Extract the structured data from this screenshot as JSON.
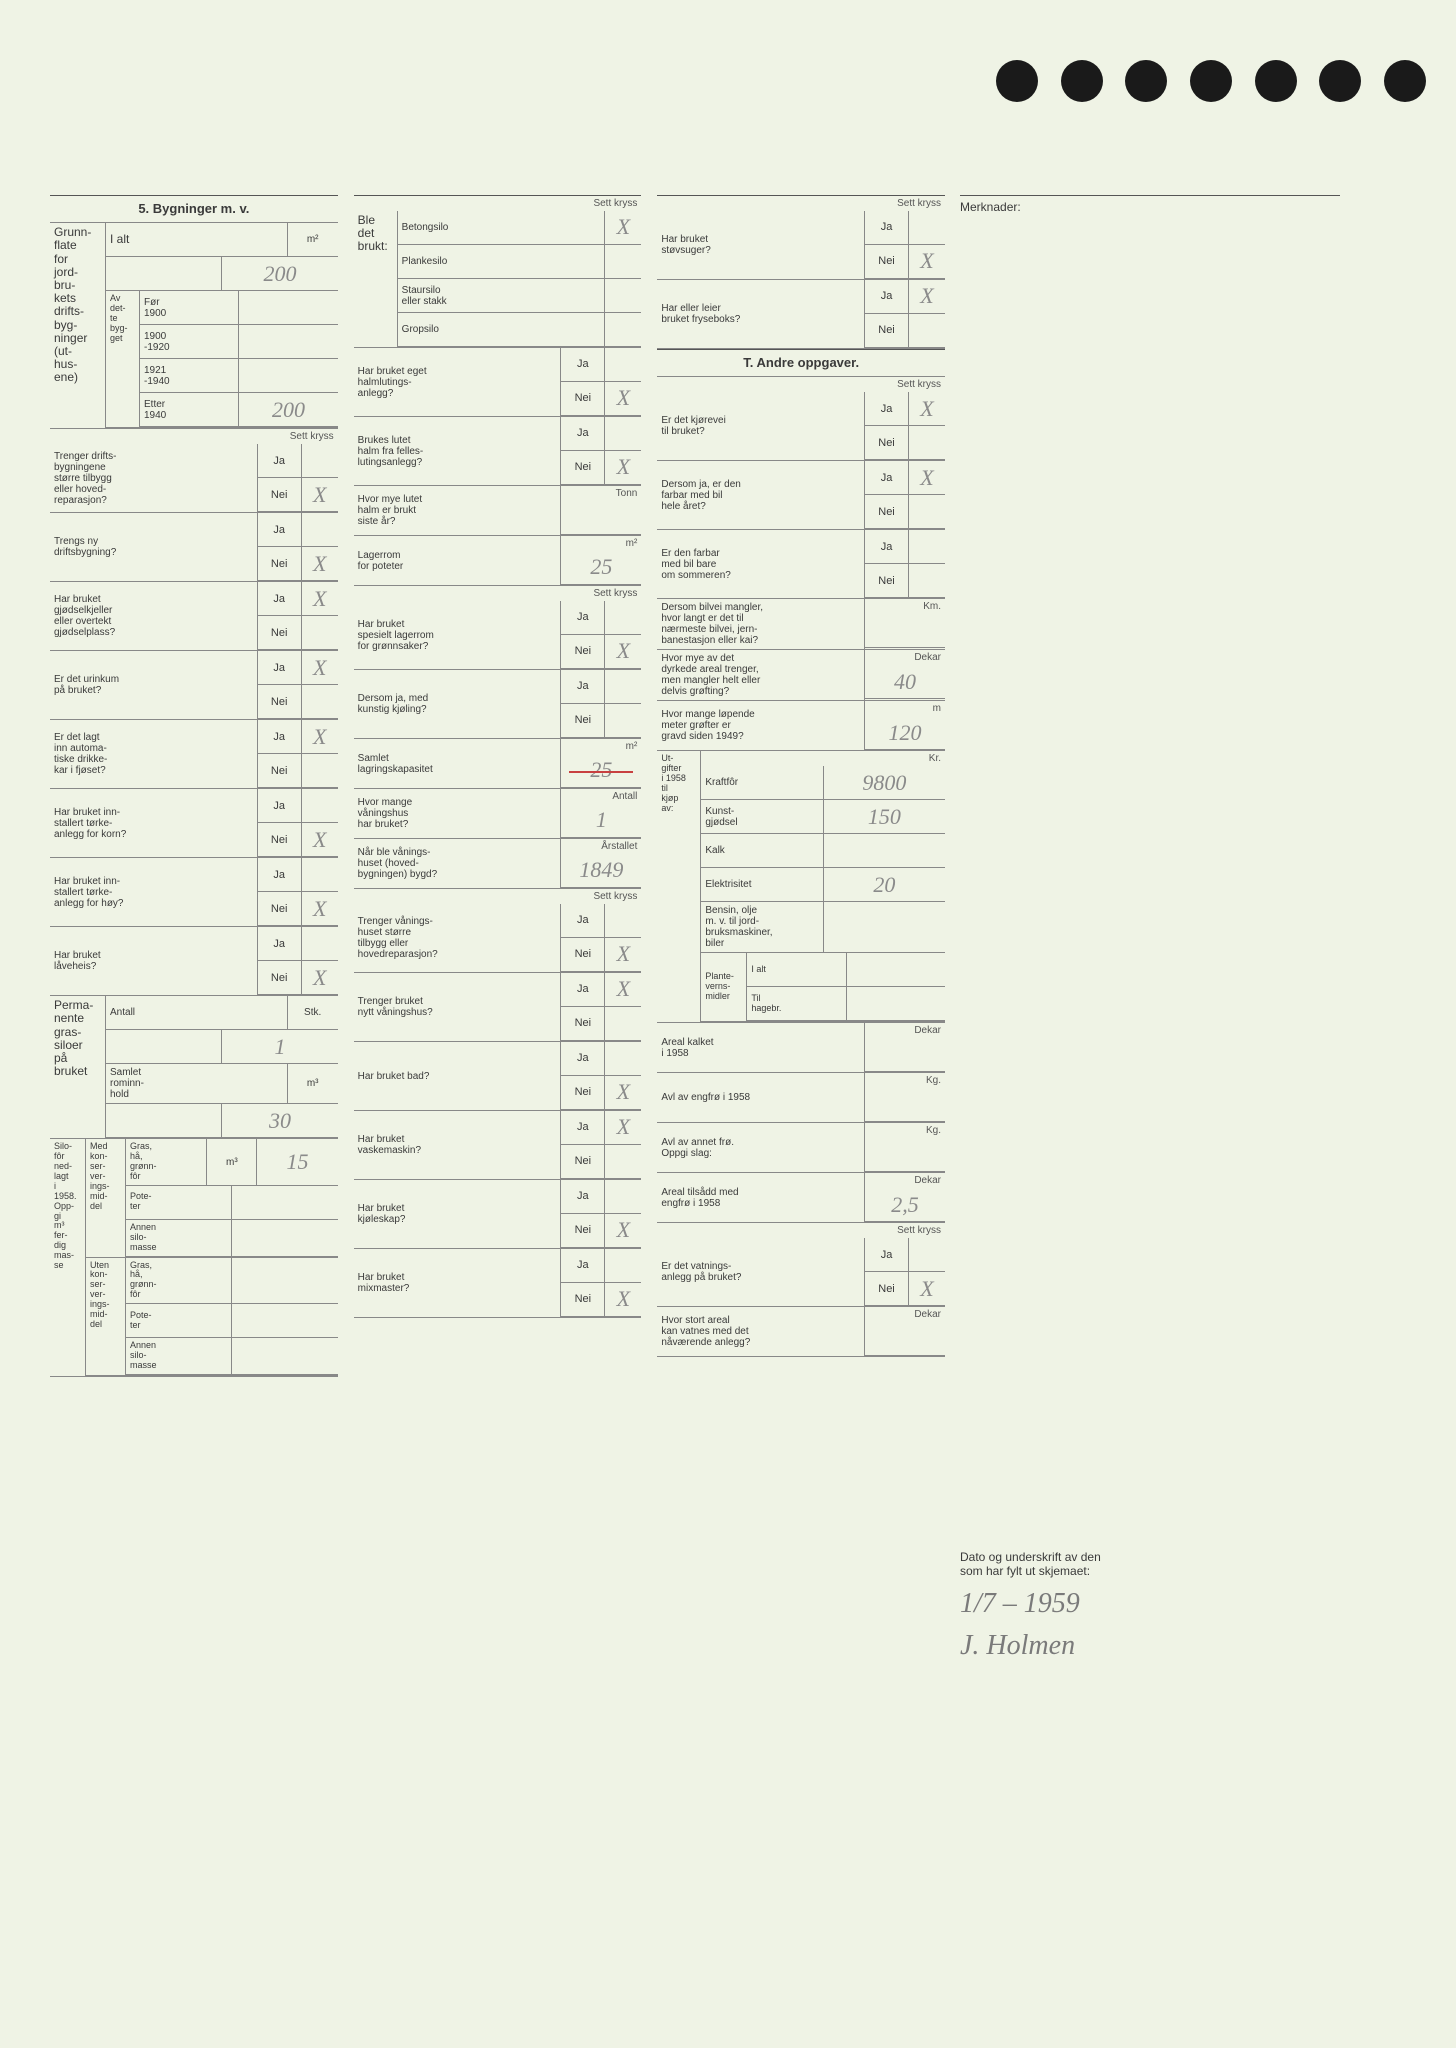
{
  "holes": 7,
  "merknader_label": "Merknader:",
  "section5_title": "5. Bygninger m. v.",
  "sett_kryss": "Sett kryss",
  "col1": {
    "grunnflate_label": "Grunn-\nflate\nfor\njord-\nbru-\nkets\ndrifts-\nbyg-\nninger\n(ut-\nhus-\nene)",
    "ialt": "I alt",
    "ialt_unit": "m²",
    "ialt_val": "200",
    "av_dette_bygget": "Av\ndet-\nte\nbyg-\nget",
    "periods": [
      {
        "label": "Før\n1900",
        "val": ""
      },
      {
        "label": "1900\n-1920",
        "val": ""
      },
      {
        "label": "1921\n-1940",
        "val": ""
      },
      {
        "label": "Etter\n1940",
        "val": "200"
      }
    ],
    "q1": {
      "text": "Trenger drifts-\nbygningene\nstørre tilbygg\neller hoved-\nreparasjon?",
      "ja": "",
      "nei": "X"
    },
    "q2": {
      "text": "Trengs ny\ndriftsbygning?",
      "ja": "",
      "nei": "X"
    },
    "q3": {
      "text": "Har bruket\ngjødselkjeller\neller overtekt\ngjødselplass?",
      "ja": "X",
      "nei": ""
    },
    "q4": {
      "text": "Er det urinkum\npå bruket?",
      "ja": "X",
      "nei": ""
    },
    "q5": {
      "text": "Er det lagt\ninn automa-\ntiske drikke-\nkar i fjøset?",
      "ja": "X",
      "nei": ""
    },
    "q6": {
      "text": "Har bruket inn-\nstallert tørke-\nanlegg for korn?",
      "ja": "",
      "nei": "X"
    },
    "q7": {
      "text": "Har bruket inn-\nstallert tørke-\nanlegg for høy?",
      "ja": "",
      "nei": "X"
    },
    "q8": {
      "text": "Har bruket\nlåveheis?",
      "ja": "",
      "nei": "X"
    },
    "perm_siloer": "Perma-\nnente\ngras-\nsiloer\npå\nbruket",
    "perm_antall_lbl": "Antall",
    "perm_antall_unit": "Stk.",
    "perm_antall_val": "1",
    "perm_rom_lbl": "Samlet\nrominn-\nhold",
    "perm_rom_unit": "m³",
    "perm_rom_val": "30",
    "silofor_label": "Silo-\nfôr\nned-\nlagt\ni\n1958.\nOpp-\ngi\nm³\nfer-\ndig\nmas-\nse",
    "med_kon": "Med\nkon-\nser-\nver-\nings-\nmid-\ndel",
    "uten_kon": "Uten\nkon-\nser-\nver-\nings-\nmid-\ndel",
    "silo_unit": "m³",
    "silo_rows": [
      {
        "label": "Gras,\nhå,\ngrønn-\nfôr",
        "val": "15"
      },
      {
        "label": "Pote-\nter",
        "val": ""
      },
      {
        "label": "Annen\nsilo-\nmasse",
        "val": ""
      },
      {
        "label": "Gras,\nhå,\ngrønn-\nfôr",
        "val": ""
      },
      {
        "label": "Pote-\nter",
        "val": ""
      },
      {
        "label": "Annen\nsilo-\nmasse",
        "val": ""
      }
    ]
  },
  "col2": {
    "ble_det_brukt": "Ble\ndet\nbrukt:",
    "silo_types": [
      {
        "label": "Betongsilo",
        "mark": "X"
      },
      {
        "label": "Plankesilo",
        "mark": ""
      },
      {
        "label": "Staursilo\neller stakk",
        "mark": ""
      },
      {
        "label": "Gropsilo",
        "mark": ""
      }
    ],
    "q1": {
      "text": "Har bruket eget\nhalmlutings-\nanlegg?",
      "ja": "",
      "nei": "X"
    },
    "q2": {
      "text": "Brukes lutet\nhalm fra felles-\nlutingsanlegg?",
      "ja": "",
      "nei": "X"
    },
    "q3": {
      "text": "Hvor mye lutet\nhalm er brukt\nsiste år?",
      "unit": "Tonn",
      "val": ""
    },
    "q4": {
      "text": "Lagerrom\nfor poteter",
      "unit": "m²",
      "val": "25"
    },
    "q5": {
      "text": "Har bruket\nspesielt lagerrom\nfor grønnsaker?",
      "ja": "",
      "nei": "X"
    },
    "q6": {
      "text": "Dersom ja, med\nkunstig kjøling?",
      "ja": "",
      "nei": ""
    },
    "q7": {
      "text": "Samlet\nlagringskapasitet",
      "unit": "m²",
      "val": "25",
      "strike": true
    },
    "q8": {
      "text": "Hvor mange\nvåningshus\nhar bruket?",
      "unit": "Antall",
      "val": "1"
    },
    "q9": {
      "text": "Når ble vånings-\nhuset (hoved-\nbygningen) bygd?",
      "unit": "Årstallet",
      "val": "1849"
    },
    "q10": {
      "text": "Trenger vånings-\nhuset større\ntilbygg eller\nhovedreparasjon?",
      "ja": "",
      "nei": "X"
    },
    "q11": {
      "text": "Trenger bruket\nnytt våningshus?",
      "ja": "X",
      "nei": ""
    },
    "q12": {
      "text": "Har bruket bad?",
      "ja": "",
      "nei": "X"
    },
    "q13": {
      "text": "Har bruket\nvaskemaskin?",
      "ja": "X",
      "nei": ""
    },
    "q14": {
      "text": "Har bruket\nkjøleskap?",
      "ja": "",
      "nei": "X"
    },
    "q15": {
      "text": "Har bruket\nmixmaster?",
      "ja": "",
      "nei": "X"
    }
  },
  "col3": {
    "q1": {
      "text": "Har bruket\nstøvsuger?",
      "ja": "",
      "nei": "X"
    },
    "q2": {
      "text": "Har eller leier\nbruket fryseboks?",
      "ja": "X",
      "nei": ""
    },
    "sectionT": "T. Andre oppgaver.",
    "q3": {
      "text": "Er det kjørevei\ntil bruket?",
      "ja": "X",
      "nei": ""
    },
    "q4": {
      "text": "Dersom ja, er den\nfarbar med bil\nhele året?",
      "ja": "X",
      "nei": ""
    },
    "q5": {
      "text": "Er den farbar\nmed bil bare\nom sommeren?",
      "ja": "",
      "nei": ""
    },
    "q6": {
      "text": "Dersom bilvei mangler,\nhvor langt er det til\nnærmeste bilvei, jern-\nbanestasjon eller kai?",
      "unit": "Km.",
      "val": ""
    },
    "q7": {
      "text": "Hvor mye av det\ndyrkede areal trenger,\nmen mangler helt eller\ndelvis grøfting?",
      "unit": "Dekar",
      "val": "40"
    },
    "q8": {
      "text": "Hvor mange løpende\nmeter grøfter er\ngravd siden 1949?",
      "unit": "m",
      "val": "120"
    },
    "utgifter_lbl": "Ut-\ngifter\ni 1958\ntil\nkjøp\nav:",
    "utgifter_unit": "Kr.",
    "utgifter": [
      {
        "label": "Kraftfôr",
        "val": "9800"
      },
      {
        "label": "Kunst-\ngjødsel",
        "val": "150"
      },
      {
        "label": "Kalk",
        "val": ""
      },
      {
        "label": "Elektrisitet",
        "val": "20"
      },
      {
        "label": "Bensin, olje\nm. v. til jord-\nbruksmaskiner,\nbiler",
        "val": ""
      }
    ],
    "plantevern_lbl": "Plante-\nverns-\nmidler",
    "plantevern_rows": [
      {
        "label": "I alt",
        "val": ""
      },
      {
        "label": "Til\nhagebr.",
        "val": ""
      }
    ],
    "q9": {
      "text": "Areal kalket\ni 1958",
      "unit": "Dekar",
      "val": ""
    },
    "q10": {
      "text": "Avl av engfrø i 1958",
      "unit": "Kg.",
      "val": ""
    },
    "q11": {
      "text": "Avl av annet frø.\nOppgi slag:",
      "unit": "Kg.",
      "val": ""
    },
    "q12": {
      "text": "Areal tilsådd med\nengfrø i 1958",
      "unit": "Dekar",
      "val": "2,5"
    },
    "q13": {
      "text": "Er det vatnings-\nanlegg på bruket?",
      "ja": "",
      "nei": "X"
    },
    "q14": {
      "text": "Hvor stort areal\nkan vatnes med det\nnåværende anlegg?",
      "unit": "Dekar",
      "val": ""
    }
  },
  "signature": {
    "label": "Dato og underskrift av den\nsom har fylt ut skjemaet:",
    "date": "1/7 – 1959",
    "name": "J. Holmen"
  }
}
